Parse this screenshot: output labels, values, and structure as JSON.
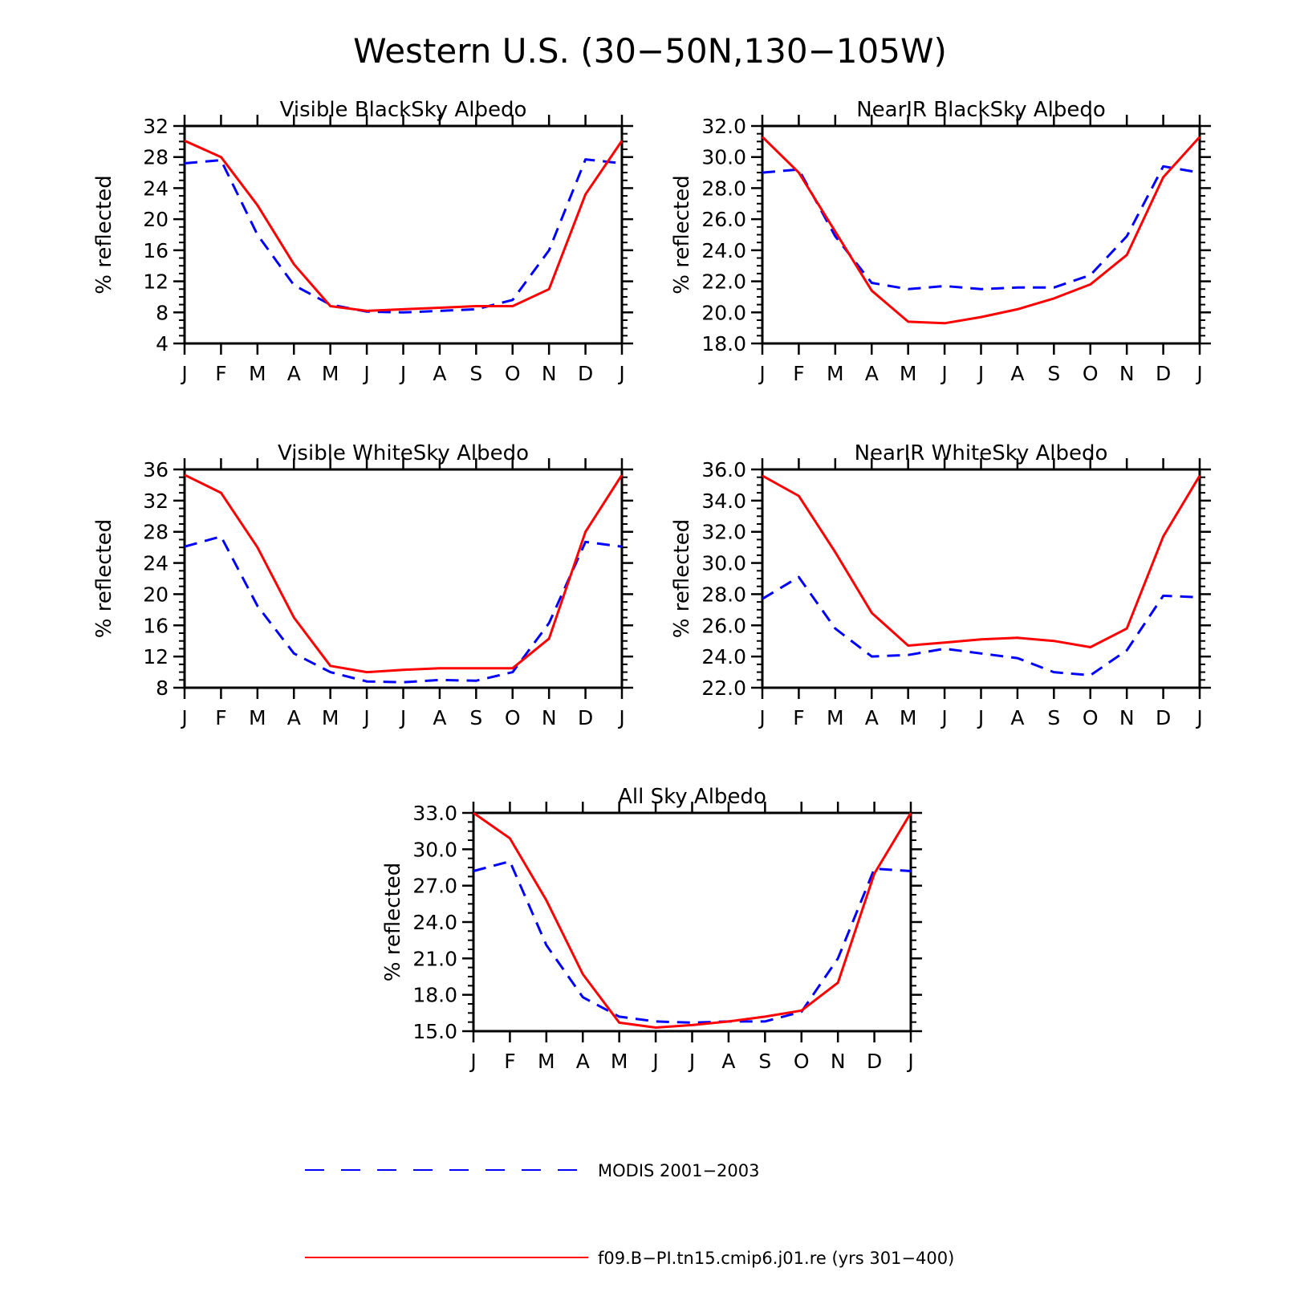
{
  "figure": {
    "title": "Western U.S. (30−50N,130−105W)"
  },
  "colors": {
    "modis": "#0000ff",
    "model": "#ff0000",
    "axis": "#000000"
  },
  "legend": {
    "entries": [
      {
        "label": "MODIS 2001−2003",
        "color": "#0000ff",
        "style": "dashed"
      },
      {
        "label": "f09.B−PI.tn15.cmip6.j01.re (yrs 301−400)",
        "color": "#ff0000",
        "style": "solid"
      }
    ]
  },
  "chart_data": [
    {
      "type": "line",
      "title": "Visible BlackSky Albedo",
      "xlabel": "",
      "ylabel": "% reflected",
      "categories": [
        "J",
        "F",
        "M",
        "A",
        "M",
        "J",
        "J",
        "A",
        "S",
        "O",
        "N",
        "D",
        "J"
      ],
      "ylim": [
        4,
        32
      ],
      "yticks": [
        "4",
        "8",
        "12",
        "16",
        "20",
        "24",
        "28",
        "32"
      ],
      "series": [
        {
          "name": "MODIS 2001−2003",
          "values": [
            27.2,
            27.6,
            18,
            11.5,
            9,
            8.1,
            8,
            8.2,
            8.4,
            9.6,
            16,
            27.7,
            27.2
          ]
        },
        {
          "name": "f09.B−PI.tn15.cmip6.j01.re (yrs 301−400)",
          "values": [
            30.1,
            28,
            21.8,
            14.2,
            8.8,
            8.2,
            8.4,
            8.6,
            8.8,
            8.8,
            11,
            23.2,
            30.1
          ]
        }
      ]
    },
    {
      "type": "line",
      "title": "NearIR BlackSky Albedo",
      "xlabel": "",
      "ylabel": "% reflected",
      "categories": [
        "J",
        "F",
        "M",
        "A",
        "M",
        "J",
        "J",
        "A",
        "S",
        "O",
        "N",
        "D",
        "J"
      ],
      "ylim": [
        18,
        32
      ],
      "yticks": [
        "18.0",
        "20.0",
        "22.0",
        "24.0",
        "26.0",
        "28.0",
        "30.0",
        "32.0"
      ],
      "series": [
        {
          "name": "MODIS 2001−2003",
          "values": [
            29.0,
            29.2,
            24.9,
            21.9,
            21.5,
            21.7,
            21.5,
            21.6,
            21.6,
            22.4,
            24.9,
            29.4,
            29.0
          ]
        },
        {
          "name": "f09.B−PI.tn15.cmip6.j01.re (yrs 301−400)",
          "values": [
            31.3,
            29.0,
            25.2,
            21.4,
            19.4,
            19.3,
            19.7,
            20.2,
            20.9,
            21.8,
            23.7,
            28.7,
            31.3
          ]
        }
      ]
    },
    {
      "type": "line",
      "title": "Visible WhiteSky Albedo",
      "xlabel": "",
      "ylabel": "% reflected",
      "categories": [
        "J",
        "F",
        "M",
        "A",
        "M",
        "J",
        "J",
        "A",
        "S",
        "O",
        "N",
        "D",
        "J"
      ],
      "ylim": [
        8,
        36
      ],
      "yticks": [
        "8",
        "12",
        "16",
        "20",
        "24",
        "28",
        "32",
        "36"
      ],
      "series": [
        {
          "name": "MODIS 2001−2003",
          "values": [
            26.1,
            27.4,
            18.5,
            12.4,
            10,
            8.8,
            8.7,
            9,
            8.9,
            10,
            16.3,
            26.7,
            26.1
          ]
        },
        {
          "name": "f09.B−PI.tn15.cmip6.j01.re (yrs 301−400)",
          "values": [
            35.3,
            33,
            26,
            17,
            10.8,
            10,
            10.3,
            10.5,
            10.5,
            10.5,
            14.3,
            28,
            35.3
          ]
        }
      ]
    },
    {
      "type": "line",
      "title": "NearIR WhiteSky Albedo",
      "xlabel": "",
      "ylabel": "% reflected",
      "categories": [
        "J",
        "F",
        "M",
        "A",
        "M",
        "J",
        "J",
        "A",
        "S",
        "O",
        "N",
        "D",
        "J"
      ],
      "ylim": [
        22,
        36
      ],
      "yticks": [
        "22.0",
        "24.0",
        "26.0",
        "28.0",
        "30.0",
        "32.0",
        "34.0",
        "36.0"
      ],
      "series": [
        {
          "name": "MODIS 2001−2003",
          "values": [
            27.7,
            29.1,
            25.8,
            24.0,
            24.1,
            24.5,
            24.2,
            23.9,
            23.0,
            22.8,
            24.4,
            27.9,
            27.8
          ]
        },
        {
          "name": "f09.B−PI.tn15.cmip6.j01.re (yrs 301−400)",
          "values": [
            35.6,
            34.3,
            30.7,
            26.8,
            24.7,
            24.9,
            25.1,
            25.2,
            25.0,
            24.6,
            25.8,
            31.7,
            35.6
          ]
        }
      ]
    },
    {
      "type": "line",
      "title": "All Sky Albedo",
      "xlabel": "",
      "ylabel": "% reflected",
      "categories": [
        "J",
        "F",
        "M",
        "A",
        "M",
        "J",
        "J",
        "A",
        "S",
        "O",
        "N",
        "D",
        "J"
      ],
      "ylim": [
        15,
        33
      ],
      "yticks": [
        "15.0",
        "18.0",
        "21.0",
        "24.0",
        "27.0",
        "30.0",
        "33.0"
      ],
      "series": [
        {
          "name": "MODIS 2001−2003",
          "values": [
            28.2,
            29.0,
            22.1,
            17.8,
            16.2,
            15.8,
            15.7,
            15.8,
            15.8,
            16.6,
            21.0,
            28.4,
            28.2
          ]
        },
        {
          "name": "f09.B−PI.tn15.cmip6.j01.re (yrs 301−400)",
          "values": [
            33.0,
            30.9,
            25.8,
            19.7,
            15.7,
            15.3,
            15.5,
            15.8,
            16.2,
            16.7,
            19.0,
            28.0,
            33.0
          ]
        }
      ]
    }
  ]
}
